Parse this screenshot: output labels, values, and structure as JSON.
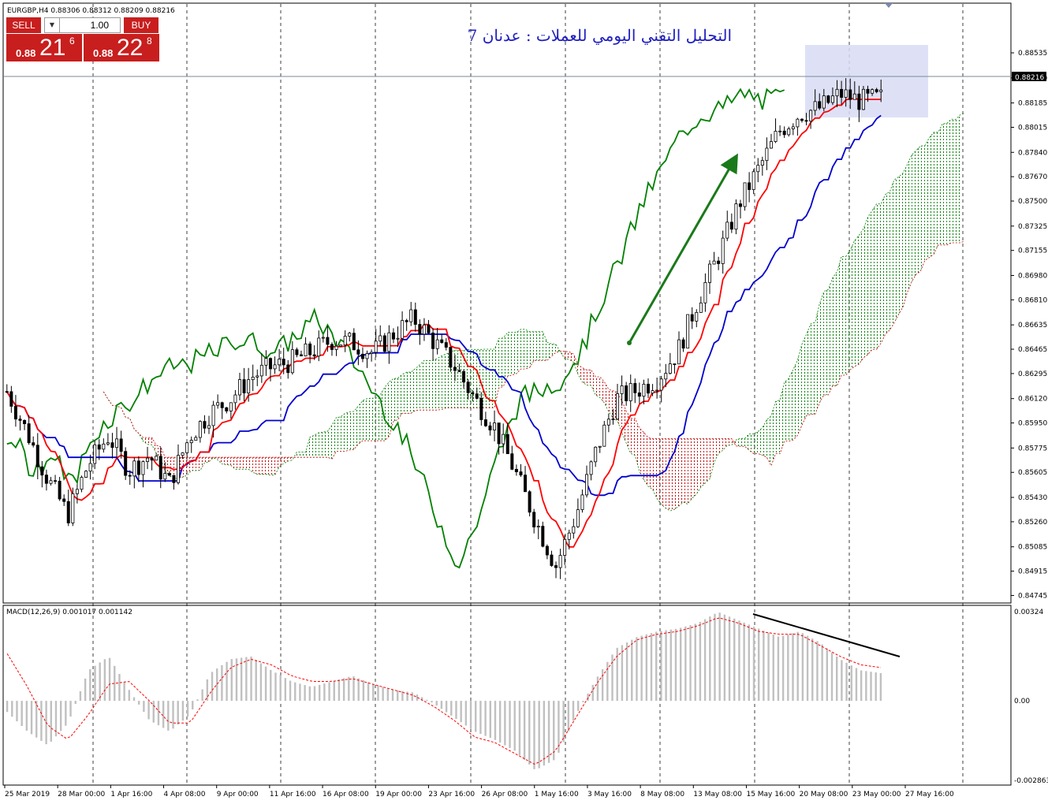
{
  "header": {
    "symbol_info": "EURGBP,H4  0.88306 0.88312 0.88209 0.88216"
  },
  "trade_panel": {
    "sell_label": "SELL",
    "buy_label": "BUY",
    "lot_value": "1.00",
    "lot_arrow": "▼",
    "sell_price_small": "0.88",
    "sell_price_big": "21",
    "sell_price_sup": "6",
    "buy_price_small": "0.88",
    "buy_price_big": "22",
    "buy_price_sup": "8"
  },
  "annotation": {
    "text": "التحليل التقني اليومي للعملات : عدنان 7"
  },
  "colors": {
    "bull_candle": "#ffffff",
    "bear_candle": "#000000",
    "chikou": "#008000",
    "tenkan": "#ff0000",
    "kijun": "#0000cc",
    "cloud_bull": "#008000",
    "cloud_bear": "#c00000",
    "macd_hist": "#c0c0c0",
    "macd_signal": "#ff0000",
    "arrow": "#1a7a1a",
    "annotation_text": "#2020c0",
    "highlight_box": "#d8dcf5",
    "trade_red": "#c81e1e"
  },
  "chart_data": [
    {
      "type": "candlestick",
      "title": "EURGBP,H4",
      "indicator": "Ichimoku Kinko Hyo",
      "current_price": "0.88216",
      "ylim": [
        0.8472,
        0.8886
      ],
      "y_ticks": [
        "0.88535",
        "0.88360",
        "0.88185",
        "0.88015",
        "0.87840",
        "0.87670",
        "0.87500",
        "0.87325",
        "0.87155",
        "0.86980",
        "0.86810",
        "0.86635",
        "0.86465",
        "0.86295",
        "0.86120",
        "0.85950",
        "0.85775",
        "0.85605",
        "0.85430",
        "0.85260",
        "0.85085",
        "0.84915",
        "0.84745"
      ],
      "x_ticks": [
        "25 Mar 2019",
        "28 Mar 00:00",
        "1 Apr 16:00",
        "4 Apr 08:00",
        "9 Apr 00:00",
        "11 Apr 16:00",
        "16 Apr 08:00",
        "19 Apr 00:00",
        "23 Apr 16:00",
        "26 Apr 08:00",
        "1 May 16:00",
        "3 May 16:00",
        "8 May 08:00",
        "13 May 08:00",
        "15 May 16:00",
        "20 May 08:00",
        "23 May 00:00",
        "27 May 16:00"
      ],
      "series": [
        {
          "name": "Close",
          "values": [
            0.8617,
            0.8588,
            0.8556,
            0.8531,
            0.8566,
            0.8586,
            0.8562,
            0.8572,
            0.8553,
            0.8586,
            0.8602,
            0.8612,
            0.8627,
            0.8634,
            0.8638,
            0.8645,
            0.8653,
            0.8651,
            0.8644,
            0.8657,
            0.8668,
            0.8652,
            0.8635,
            0.8612,
            0.8592,
            0.8561,
            0.8527,
            0.8495,
            0.8531,
            0.8576,
            0.8612,
            0.8618,
            0.8626,
            0.8645,
            0.8681,
            0.8712,
            0.8748,
            0.8773,
            0.8799,
            0.8811,
            0.8815,
            0.8825,
            0.882,
            0.8822
          ]
        }
      ]
    },
    {
      "type": "bar",
      "title": "MACD(12,26,9) 0.001017 0.001142",
      "ylim": [
        -0.002863,
        0.00324
      ],
      "y_ticks": [
        "0.00324",
        "0.00",
        "-0.002863"
      ],
      "series": [
        {
          "name": "MACD",
          "values": [
            -0.0004,
            -0.0011,
            -0.0016,
            -0.0008,
            0.0011,
            0.0016,
            0.0004,
            -0.0007,
            -0.0011,
            -0.0005,
            0.001,
            0.0015,
            0.0016,
            0.0011,
            0.0007,
            0.0005,
            0.0007,
            0.0009,
            0.0006,
            0.0004,
            0.0003,
            -0.0001,
            -0.0006,
            -0.0011,
            -0.0014,
            -0.0018,
            -0.0025,
            -0.0021,
            -0.0005,
            0.0008,
            0.0019,
            0.0023,
            0.0025,
            0.0026,
            0.0028,
            0.0032,
            0.0029,
            0.0026,
            0.0023,
            0.0025,
            0.0021,
            0.0015,
            0.0011,
            0.001
          ]
        },
        {
          "name": "Signal",
          "values": [
            0.0017,
            0.0005,
            -0.0009,
            -0.0014,
            -0.0005,
            0.0006,
            0.0007,
            0.0,
            -0.0008,
            -0.0008,
            0.0003,
            0.0012,
            0.0015,
            0.0013,
            0.0009,
            0.0007,
            0.0007,
            0.0008,
            0.0006,
            0.0004,
            0.0002,
            -0.0002,
            -0.0007,
            -0.0013,
            -0.0015,
            -0.0019,
            -0.0023,
            -0.0018,
            -0.0006,
            0.0006,
            0.0016,
            0.0022,
            0.0024,
            0.0025,
            0.0027,
            0.003,
            0.0028,
            0.0025,
            0.0024,
            0.0024,
            0.002,
            0.0016,
            0.0013,
            0.0012
          ]
        }
      ]
    }
  ]
}
